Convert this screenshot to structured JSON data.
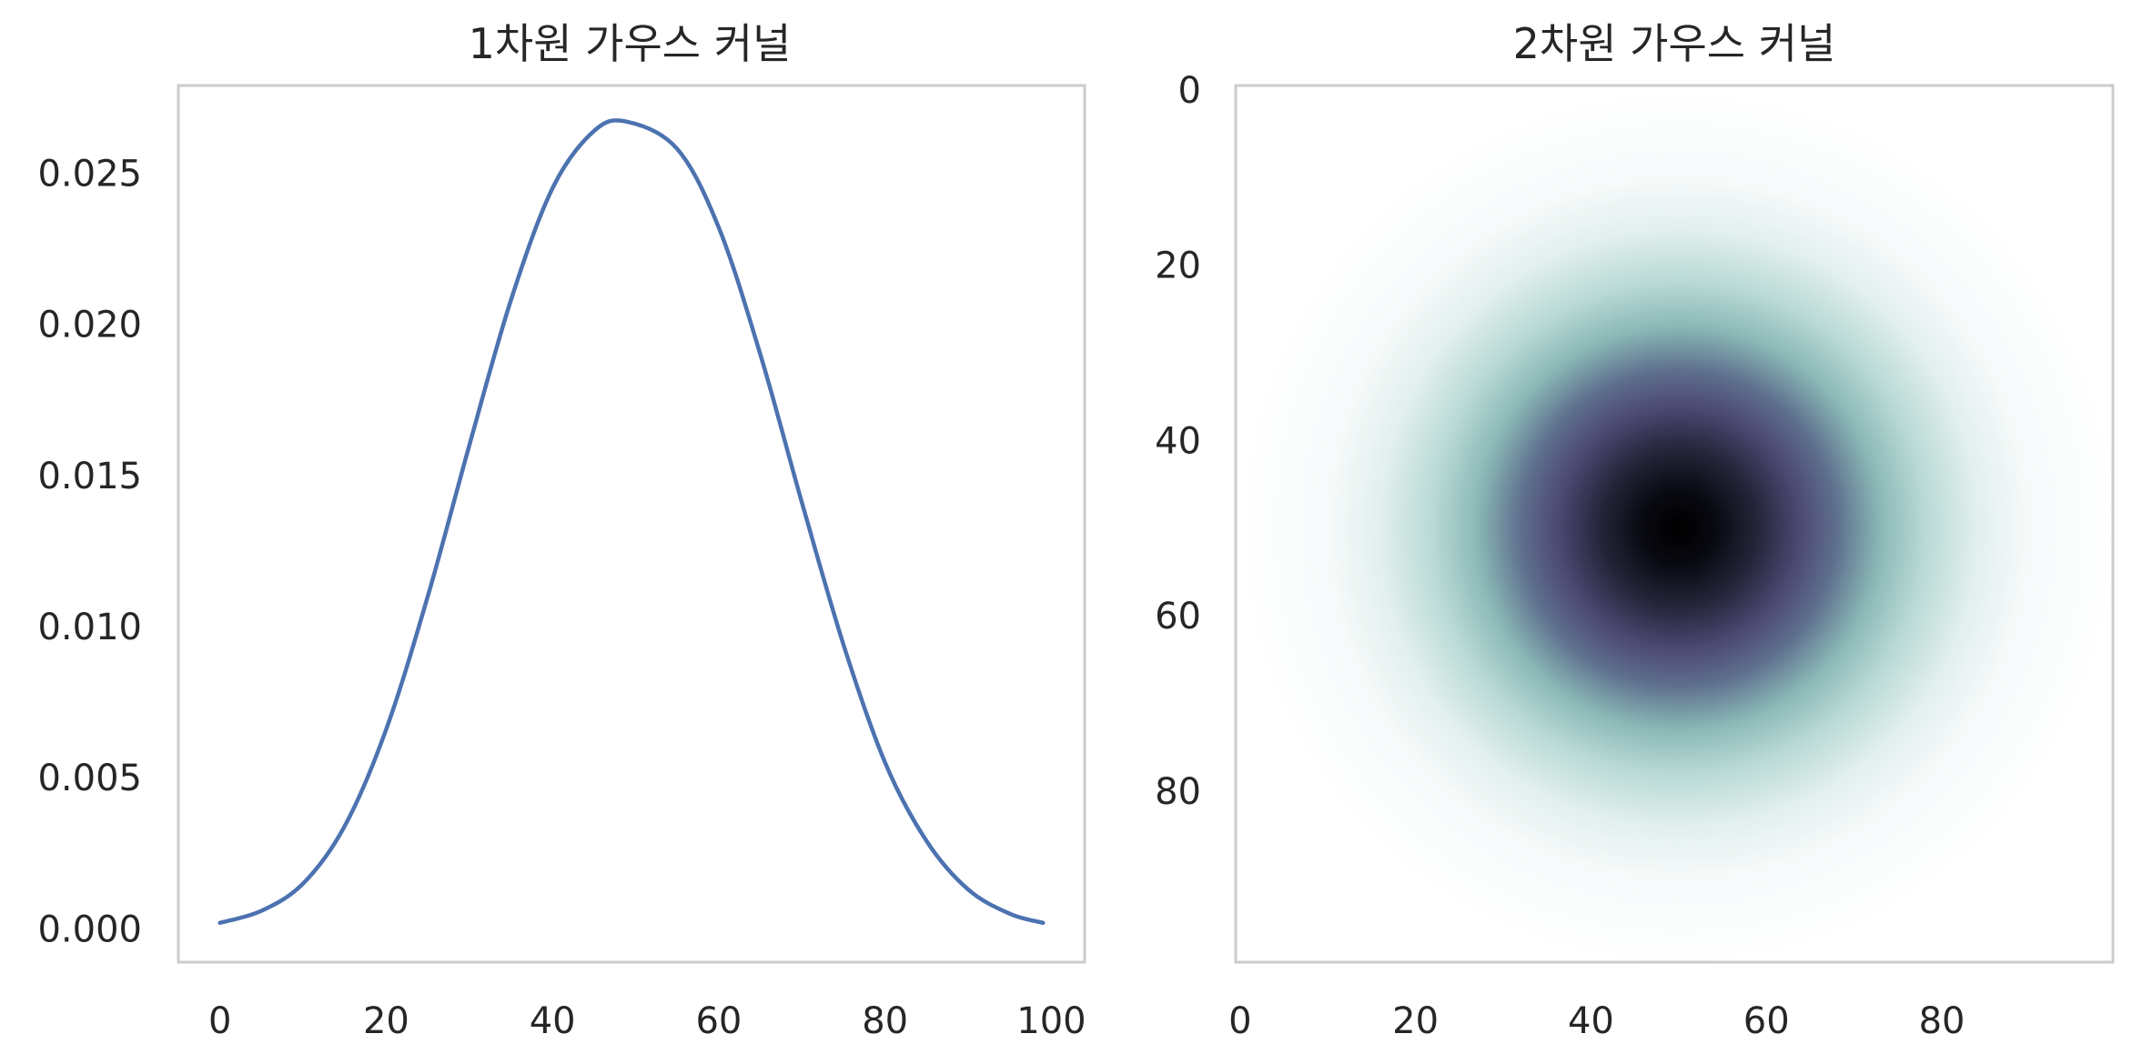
{
  "chart_data": [
    {
      "type": "line",
      "title": "1차원 가우스 커널",
      "x": [
        0,
        5,
        10,
        15,
        20,
        25,
        30,
        35,
        40,
        45,
        49,
        55,
        60,
        65,
        70,
        75,
        80,
        85,
        90,
        95,
        99
      ],
      "series": [
        {
          "values": [
            0.0002,
            0.0006,
            0.0015,
            0.0034,
            0.0066,
            0.011,
            0.016,
            0.0208,
            0.0245,
            0.0264,
            0.0267,
            0.0258,
            0.0232,
            0.019,
            0.0141,
            0.0094,
            0.0055,
            0.0029,
            0.0013,
            0.0005,
            0.0002
          ]
        }
      ],
      "xlim": [
        -5,
        104
      ],
      "ylim": [
        -0.0011,
        0.0279
      ],
      "xticks": [
        "0",
        "20",
        "40",
        "60",
        "80",
        "100"
      ],
      "yticks": [
        "0.000",
        "0.005",
        "0.010",
        "0.015",
        "0.020",
        "0.025"
      ],
      "grid": false,
      "color": "#4c72b0"
    },
    {
      "type": "heatmap",
      "title": "2차원 가우스 커널",
      "size": 100,
      "center": [
        50,
        50
      ],
      "sigma": 15,
      "xlim": [
        -0.5,
        99.5
      ],
      "ylim": [
        99.5,
        -0.5
      ],
      "xticks": [
        "0",
        "20",
        "40",
        "60",
        "80"
      ],
      "yticks": [
        "0",
        "20",
        "40",
        "60",
        "80"
      ],
      "colormap": [
        "#ffffff",
        "#a6cfca",
        "#4d4a75",
        "#000000"
      ],
      "grid": false
    }
  ]
}
